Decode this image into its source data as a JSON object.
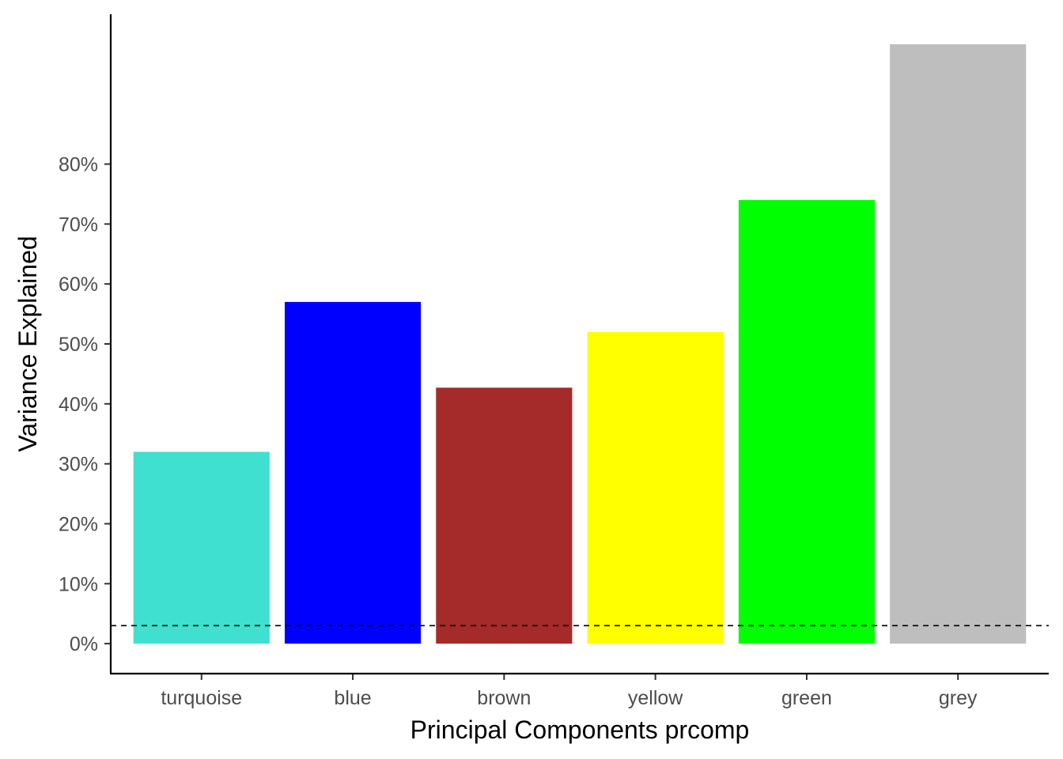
{
  "chart_data": {
    "type": "bar",
    "title": "",
    "xlabel": "Principal Components prcomp",
    "ylabel": "Variance Explained",
    "categories": [
      "turquoise",
      "blue",
      "brown",
      "yellow",
      "green",
      "grey"
    ],
    "values": [
      0.32,
      0.57,
      0.427,
      0.52,
      0.74,
      1.0
    ],
    "colors": [
      "#40E0D0",
      "#0000FF",
      "#A52A2A",
      "#FFFF00",
      "#00FF00",
      "#BEBEBE"
    ],
    "ylim": [
      -0.05,
      1.05
    ],
    "yticks": [
      0,
      0.1,
      0.2,
      0.3,
      0.4,
      0.5,
      0.6,
      0.7,
      0.8
    ],
    "ytick_labels": [
      "0%",
      "10%",
      "20%",
      "30%",
      "40%",
      "50%",
      "60%",
      "70%",
      "80%"
    ],
    "reference_line": {
      "y": 0.03,
      "style": "dashed",
      "color": "#000000"
    },
    "grid": false,
    "legend": "none"
  }
}
